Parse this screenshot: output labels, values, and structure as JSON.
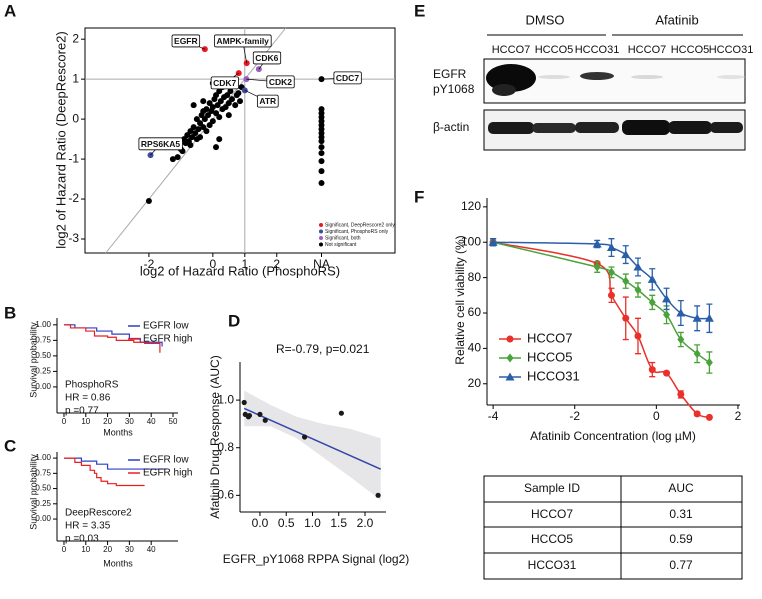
{
  "panel_labels": [
    "A",
    "B",
    "C",
    "D",
    "E",
    "F"
  ],
  "chart_data": [
    {
      "type": "scatter",
      "xlabel": "log2 of Hazard Ratio (PhosphoRS)",
      "ylabel": "log2 of Hazard Ratio (DeepRescore2)",
      "xlim": [
        -4,
        5.7
      ],
      "ylim": [
        -3.35,
        2.28
      ],
      "xticks": [
        -2,
        0,
        1,
        2,
        {
          "value": 3.4,
          "label": "NA"
        }
      ],
      "yticks": [
        -3,
        -2,
        -1,
        0,
        1,
        2
      ],
      "hlines": [
        1
      ],
      "vlines": [
        1
      ],
      "diagonal": true,
      "legend": "lower right",
      "series": [
        {
          "name": "Significant, DeepRescore2 only",
          "color": "#e8191f",
          "x": [
            -0.25,
            1.06,
            0.81
          ],
          "values": [
            1.75,
            1.4,
            1.15
          ],
          "point_labels": [
            "EGFR",
            "AMPK-family",
            "CDK7"
          ]
        },
        {
          "name": "Significant, PhosphoRS only",
          "color": "#3f4c9f",
          "x": [
            -1.95,
            1.0
          ],
          "values": [
            -0.9,
            0.72
          ],
          "point_labels": [
            "RPS6KA5",
            "ATR"
          ]
        },
        {
          "name": "Significant, both",
          "color": "#9b5fc0",
          "x": [
            1.44,
            1.05
          ],
          "values": [
            1.25,
            1.0
          ],
          "point_labels": [
            "CDK6",
            "CDK2"
          ]
        },
        {
          "name": "Not significant",
          "color": "#000000",
          "x": [
            3.4,
            3.4,
            3.4,
            3.4,
            3.4,
            3.4,
            3.4,
            3.4,
            3.4,
            3.4,
            3.4,
            3.4,
            3.4,
            3.4,
            3.4,
            -1.0,
            -0.9,
            -0.85,
            -0.8,
            -0.75,
            -0.7,
            -0.7,
            -0.65,
            -0.6,
            -0.55,
            -0.5,
            -0.5,
            -0.45,
            -0.4,
            -0.4,
            -0.35,
            -0.3,
            -0.3,
            -0.25,
            -0.2,
            -0.2,
            -0.15,
            -0.1,
            -0.1,
            -0.05,
            0,
            0,
            0.05,
            0.1,
            0.1,
            0.15,
            0.2,
            0.2,
            0.25,
            0.3,
            0.3,
            0.35,
            0.4,
            0.45,
            0.5,
            0.55,
            0.6,
            0.65,
            0.7,
            0.75,
            0.8,
            0.85,
            0.9,
            -1.1,
            -0.95,
            0.0,
            0.2,
            -0.3,
            0.5,
            -1.25,
            -2.0,
            -0.6,
            0.1
          ],
          "values": [
            1.0,
            0.25,
            0.15,
            0.05,
            -0.05,
            -0.15,
            -0.25,
            -0.35,
            -0.45,
            -0.55,
            -0.7,
            -0.85,
            -1.05,
            -1.3,
            -1.6,
            -0.75,
            -0.5,
            -0.6,
            -0.4,
            -0.55,
            -0.3,
            -0.65,
            -0.45,
            -0.2,
            -0.35,
            -0.5,
            0.0,
            -0.25,
            -0.1,
            -0.45,
            0.1,
            -0.2,
            0.2,
            0.0,
            0.25,
            -0.3,
            0.1,
            0.4,
            -0.15,
            0.2,
            0.3,
            -0.05,
            0.5,
            0.15,
            0.6,
            0.35,
            0.7,
            0.05,
            0.45,
            0.25,
            0.8,
            0.55,
            0.3,
            0.6,
            0.4,
            0.7,
            0.5,
            0.85,
            0.35,
            0.6,
            0.65,
            0.45,
            0.8,
            -0.95,
            -0.8,
            0.9,
            -0.5,
            0.45,
            0.1,
            -1.0,
            -2.05,
            0.35,
            -0.7
          ],
          "point_labels": [
            "CDC7",
            null,
            null,
            null,
            null,
            null,
            null,
            null,
            null,
            null,
            null,
            null,
            null,
            null,
            null,
            null,
            null,
            null,
            null,
            null,
            null,
            null,
            null,
            null,
            null,
            null,
            null,
            null,
            null,
            null,
            null,
            null,
            null,
            null,
            null,
            null,
            null,
            null,
            null,
            null,
            null,
            null,
            null,
            null,
            null,
            null,
            null,
            null,
            null,
            null,
            null,
            null,
            null,
            null,
            null,
            null,
            null,
            null,
            null,
            null,
            null,
            null,
            null,
            null,
            null,
            null,
            null,
            null,
            null,
            null,
            null,
            null,
            null
          ]
        }
      ]
    },
    {
      "type": "step",
      "xlabel": "Months",
      "ylabel": "Survival probability",
      "xlim": [
        -3.2,
        52.3
      ],
      "ylim": [
        -0.42,
        1.11
      ],
      "xticks": [
        0,
        10,
        20,
        30,
        40,
        50
      ],
      "yticks": [
        {
          "value": 0,
          "label": "0.00"
        },
        0.25,
        {
          "value": 0.5,
          "label": "0.50"
        },
        0.75,
        {
          "value": 1,
          "label": "1.00"
        }
      ],
      "legend": "upper right",
      "texts": [
        "PhosphoRS",
        "HR = 0.86",
        "p =0.77"
      ],
      "series": [
        {
          "name": "EGFR low",
          "color": "#2e3cc9",
          "x": [
            0,
            5,
            15,
            22,
            30,
            35,
            45
          ],
          "values": [
            1,
            0.95,
            0.9,
            0.85,
            0.78,
            0.72,
            0.65
          ]
        },
        {
          "name": "EGFR high",
          "color": "#e8201f",
          "x": [
            0,
            3,
            10,
            14,
            20,
            24,
            32,
            37,
            44,
            44
          ],
          "values": [
            1,
            0.95,
            0.9,
            0.82,
            0.8,
            0.75,
            0.72,
            0.7,
            0.62,
            0.55
          ]
        }
      ]
    },
    {
      "type": "step",
      "xlabel": "Months",
      "ylabel": "Survival probability",
      "xlim": [
        -3.2,
        52.3
      ],
      "ylim": [
        -0.36,
        1.1
      ],
      "xticks": [
        0,
        10,
        20,
        30,
        40
      ],
      "yticks": [
        {
          "value": 0,
          "label": "0.00"
        },
        0.25,
        {
          "value": 0.5,
          "label": "0.50"
        },
        0.75,
        {
          "value": 1,
          "label": "1.00"
        }
      ],
      "legend": "upper right",
      "texts": [
        "DeepRescore2",
        "HR = 3.35",
        "p =0.03"
      ],
      "series": [
        {
          "name": "EGFR low",
          "color": "#2e3cc9",
          "x": [
            0,
            8,
            15,
            20,
            47
          ],
          "values": [
            1,
            0.95,
            0.9,
            0.82,
            0.82
          ]
        },
        {
          "name": "EGFR high",
          "color": "#e8201f",
          "x": [
            0,
            5,
            8,
            12,
            14,
            15,
            17,
            20,
            24,
            37
          ],
          "values": [
            1,
            0.93,
            0.88,
            0.8,
            0.75,
            0.68,
            0.62,
            0.58,
            0.55,
            0.55
          ]
        }
      ]
    },
    {
      "type": "scatter",
      "xlabel": "EGFR_pY1068 RPPA Signal (log2)",
      "ylabel": "Afatinib Drug Response (AUC)",
      "annotation": "R=-0.79, p=0.021",
      "xlim": [
        -0.38,
        2.4
      ],
      "ylim": [
        0.53,
        1.16
      ],
      "xticks": [
        {
          "value": 0,
          "label": "0.0"
        },
        0.5,
        {
          "value": 1,
          "label": "1.0"
        },
        1.5,
        {
          "value": 2,
          "label": "2.0"
        }
      ],
      "yticks": [
        0.6,
        0.8,
        {
          "value": 1,
          "label": "1.0"
        }
      ],
      "color": "#1a1a1a",
      "x": [
        -0.3,
        -0.28,
        -0.22,
        -0.2,
        0.0,
        0.1,
        0.85,
        1.55,
        2.25
      ],
      "values": [
        0.99,
        0.94,
        0.93,
        0.935,
        0.94,
        0.915,
        0.845,
        0.945,
        0.6
      ],
      "fit": {
        "color": "#3346a8",
        "x": [
          -0.3,
          2.3
        ],
        "values": [
          0.965,
          0.71
        ]
      },
      "band": {
        "color": "#e6e6e9",
        "x": [
          -0.3,
          0.2,
          0.7,
          1.2,
          1.7,
          2.3
        ],
        "lower": [
          0.89,
          0.89,
          0.84,
          0.76,
          0.68,
          0.58
        ],
        "upper": [
          1.04,
          0.98,
          0.93,
          0.9,
          0.88,
          0.84
        ]
      }
    },
    {
      "type": "line",
      "xlabel": "Afatinib Concentration (log µM)",
      "ylabel": "Relative cell viability (%)",
      "xlim": [
        -4.15,
        2.05
      ],
      "ylim": [
        8,
        125
      ],
      "xticks": [
        -4,
        -2,
        0,
        2
      ],
      "yticks": [
        20,
        40,
        60,
        80,
        100,
        120
      ],
      "legend": "lower left",
      "x": [
        -4,
        -1.45,
        -1.1,
        -0.75,
        -0.45,
        -0.1,
        0.25,
        0.6,
        1.0,
        1.3
      ],
      "series": [
        {
          "name": "HCCO7",
          "color": "#e8312a",
          "marker": "circle",
          "values": [
            100,
            88,
            70,
            57,
            47,
            28,
            26,
            14,
            3,
            1
          ],
          "errors": [
            2,
            null,
            4,
            12,
            10,
            4,
            null,
            2,
            1,
            null
          ]
        },
        {
          "name": "HCCO5",
          "color": "#4aa23a",
          "marker": "diamond",
          "values": [
            100,
            86,
            83,
            78,
            73,
            66,
            59,
            45,
            37,
            32
          ],
          "errors": [
            2,
            3,
            3,
            4,
            4,
            4,
            5,
            4,
            5,
            6
          ]
        },
        {
          "name": "HCCO31",
          "color": "#2a5fa8",
          "marker": "triangle",
          "values": [
            100,
            99,
            97,
            93,
            86,
            79,
            68,
            60,
            57,
            57
          ],
          "errors": [
            2,
            2,
            5,
            5,
            5,
            6,
            6,
            7,
            7,
            8
          ]
        }
      ]
    }
  ],
  "blot": {
    "groups": [
      "DMSO",
      "Afatinib"
    ],
    "lanes": [
      "HCCO7",
      "HCCO5",
      "HCCO31",
      "HCCO7",
      "HCCO5",
      "HCCO31"
    ],
    "row_labels": [
      [
        "EGFR",
        "pY1068"
      ],
      [
        "β-actin"
      ]
    ]
  },
  "table": {
    "columns": [
      "Sample ID",
      "AUC"
    ],
    "rows": [
      [
        "HCCO7",
        0.31
      ],
      [
        "HCCO5",
        0.59
      ],
      [
        "HCCO31",
        0.77
      ]
    ]
  }
}
